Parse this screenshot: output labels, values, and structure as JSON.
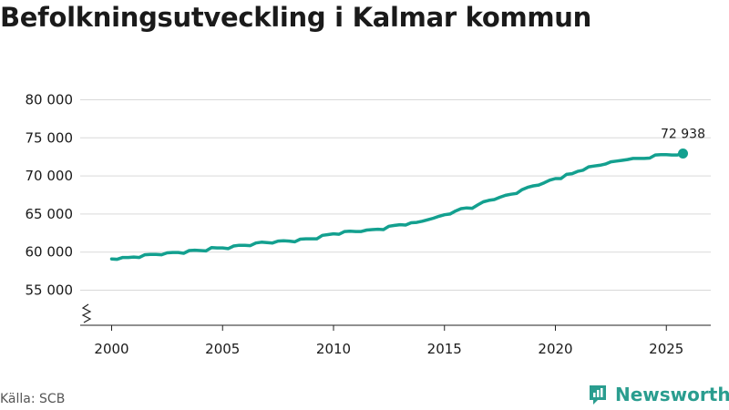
{
  "title": "Befolkningsutveckling i Kalmar kommun",
  "source": "Källa: SCB",
  "brand": {
    "name": "Newsworthy",
    "logo_icon": "newsworthy-bar-chart-logo",
    "color": "#2a9d8f"
  },
  "line_color": "#13a08f",
  "chart_data": {
    "type": "line",
    "title": "Befolkningsutveckling i Kalmar kommun",
    "xlabel": "",
    "ylabel": "",
    "xlim": [
      1999,
      2027
    ],
    "ylim": [
      50000,
      80000
    ],
    "axis_break": true,
    "grid": "horizontal",
    "y_ticks": [
      55000,
      60000,
      65000,
      70000,
      75000,
      80000
    ],
    "y_tick_labels": [
      "55 000",
      "60 000",
      "65 000",
      "70 000",
      "75 000",
      "80 000"
    ],
    "x_ticks": [
      2000,
      2005,
      2010,
      2015,
      2020,
      2025
    ],
    "x_tick_labels": [
      "2000",
      "2005",
      "2010",
      "2015",
      "2020",
      "2025"
    ],
    "end_label": "72 938",
    "series": [
      {
        "x": [
          2000.0,
          2000.25,
          2000.5,
          2000.75,
          2001.0,
          2001.25,
          2001.5,
          2001.75,
          2002.0,
          2002.25,
          2002.5,
          2002.75,
          2003.0,
          2003.25,
          2003.5,
          2003.75,
          2004.0,
          2004.25,
          2004.5,
          2004.75,
          2005.0,
          2005.25,
          2005.5,
          2005.75,
          2006.0,
          2006.25,
          2006.5,
          2006.75,
          2007.0,
          2007.25,
          2007.5,
          2007.75,
          2008.0,
          2008.25,
          2008.5,
          2008.75,
          2009.0,
          2009.25,
          2009.5,
          2009.75,
          2010.0,
          2010.25,
          2010.5,
          2010.75,
          2011.0,
          2011.25,
          2011.5,
          2011.75,
          2012.0,
          2012.25,
          2012.5,
          2012.75,
          2013.0,
          2013.25,
          2013.5,
          2013.75,
          2014.0,
          2014.25,
          2014.5,
          2014.75,
          2015.0,
          2015.25,
          2015.5,
          2015.75,
          2016.0,
          2016.25,
          2016.5,
          2016.75,
          2017.0,
          2017.25,
          2017.5,
          2017.75,
          2018.0,
          2018.25,
          2018.5,
          2018.75,
          2019.0,
          2019.25,
          2019.5,
          2019.75,
          2020.0,
          2020.25,
          2020.5,
          2020.75,
          2021.0,
          2021.25,
          2021.5,
          2021.75,
          2022.0,
          2022.25,
          2022.5,
          2022.75,
          2023.0,
          2023.25,
          2023.5,
          2023.75,
          2024.0,
          2024.25,
          2024.5,
          2024.75,
          2025.0,
          2025.25,
          2025.5,
          2025.75
        ],
        "y": [
          59100,
          59050,
          59300,
          59300,
          59350,
          59300,
          59650,
          59700,
          59700,
          59650,
          59900,
          59950,
          59950,
          59850,
          60200,
          60250,
          60200,
          60150,
          60600,
          60550,
          60550,
          60450,
          60800,
          60900,
          60900,
          60850,
          61200,
          61300,
          61250,
          61200,
          61450,
          61500,
          61450,
          61350,
          61700,
          61750,
          61750,
          61750,
          62200,
          62300,
          62400,
          62350,
          62700,
          62750,
          62700,
          62700,
          62900,
          62950,
          63000,
          62950,
          63400,
          63500,
          63600,
          63550,
          63850,
          63900,
          64050,
          64250,
          64450,
          64700,
          64900,
          65000,
          65400,
          65700,
          65800,
          65750,
          66200,
          66600,
          66800,
          66900,
          67200,
          67450,
          67600,
          67700,
          68200,
          68500,
          68700,
          68800,
          69100,
          69450,
          69650,
          69650,
          70200,
          70300,
          70600,
          70750,
          71200,
          71300,
          71400,
          71550,
          71850,
          71950,
          72050,
          72150,
          72300,
          72300,
          72300,
          72350,
          72750,
          72800,
          72800,
          72750,
          72750,
          72938
        ]
      }
    ]
  }
}
